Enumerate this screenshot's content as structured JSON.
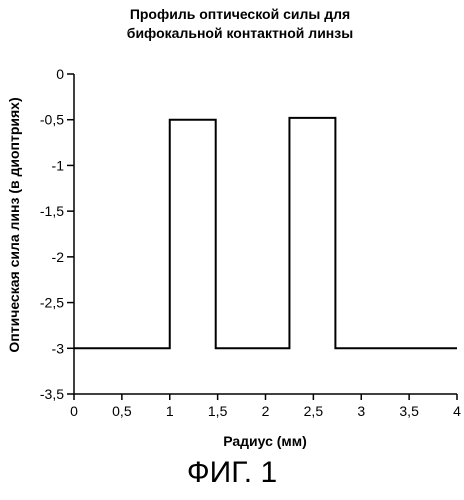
{
  "chart_data": {
    "type": "line",
    "title_lines": [
      "Профиль оптической силы для",
      "бифокальной контактной линзы"
    ],
    "xlabel": "Радиус (мм)",
    "ylabel": "Оптическая сила линз (в диоптриях)",
    "xlim": [
      0,
      4
    ],
    "ylim": [
      -3.5,
      0
    ],
    "x_ticks": [
      0,
      0.5,
      1,
      1.5,
      2,
      2.5,
      3,
      3.5,
      4
    ],
    "x_tick_labels": [
      "0",
      "0,5",
      "1",
      "1,5",
      "2",
      "2,5",
      "3",
      "3,5",
      "4"
    ],
    "y_ticks": [
      0,
      -0.5,
      -1,
      -1.5,
      -2,
      -2.5,
      -3,
      -3.5
    ],
    "y_tick_labels": [
      "0",
      "-0,5",
      "-1",
      "-1,5",
      "-2",
      "-2,5",
      "-3",
      "-3,5"
    ],
    "grid": false,
    "series": [
      {
        "x": [
          0,
          1,
          1,
          1.48,
          1.48,
          2.25,
          2.25,
          2.73,
          2.73,
          4
        ],
        "y": [
          -3,
          -3,
          -0.5,
          -0.5,
          -3,
          -3,
          -0.48,
          -0.48,
          -3,
          -3
        ]
      }
    ]
  },
  "figure_caption": "ФИГ. 1"
}
